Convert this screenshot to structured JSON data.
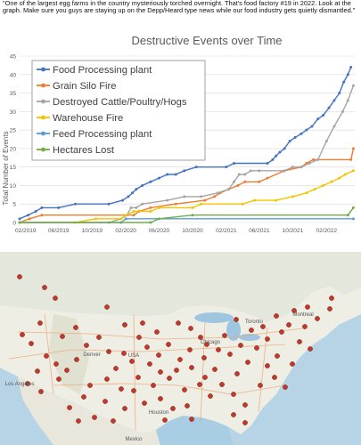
{
  "caption": "\"One of the largest egg farms in the country mysteriously torched overnight.  That's food factory #19 in 2022. Look at the graph. Make sure you guys are staying up on the Depp/Heard type news while our food industry gets quietly dismantled.\"",
  "chart_data": {
    "type": "line",
    "title": "Destructive Events over Time",
    "xlabel": "",
    "ylabel": "Total Number of Events",
    "ylim": [
      0,
      45
    ],
    "yticks": [
      0,
      5,
      10,
      15,
      20,
      25,
      30,
      35,
      40,
      45
    ],
    "xlim": [
      "2019-01-10",
      "2022-05-15"
    ],
    "x_tick_labels": [
      "02/2019",
      "06/2019",
      "10/2019",
      "02/2020",
      "06/2020",
      "10/2020",
      "02/2021",
      "06/2021",
      "10/2021",
      "02/2022"
    ],
    "x_tick_dates": [
      "2019-02-01",
      "2019-06-01",
      "2019-10-01",
      "2020-02-01",
      "2020-06-01",
      "2020-10-01",
      "2021-02-01",
      "2021-06-01",
      "2021-10-01",
      "2022-02-01"
    ],
    "grid": "horizontal",
    "legend_position": "top-left",
    "series": [
      {
        "name": "Food Processing plant",
        "color": "#4472c4",
        "points": [
          [
            "2019-01-10",
            1
          ],
          [
            "2019-02-10",
            2
          ],
          [
            "2019-03-10",
            3
          ],
          [
            "2019-04-01",
            4
          ],
          [
            "2019-06-01",
            4
          ],
          [
            "2019-08-01",
            5
          ],
          [
            "2019-12-01",
            5
          ],
          [
            "2020-01-20",
            6
          ],
          [
            "2020-02-10",
            7
          ],
          [
            "2020-02-25",
            8
          ],
          [
            "2020-03-10",
            9
          ],
          [
            "2020-04-01",
            10
          ],
          [
            "2020-05-01",
            11
          ],
          [
            "2020-06-01",
            12
          ],
          [
            "2020-07-01",
            13
          ],
          [
            "2020-08-01",
            13
          ],
          [
            "2020-09-01",
            14
          ],
          [
            "2020-10-15",
            15
          ],
          [
            "2021-02-01",
            15
          ],
          [
            "2021-03-01",
            16
          ],
          [
            "2021-07-01",
            16
          ],
          [
            "2021-07-20",
            17
          ],
          [
            "2021-08-01",
            18
          ],
          [
            "2021-08-15",
            19
          ],
          [
            "2021-09-01",
            20
          ],
          [
            "2021-09-20",
            22
          ],
          [
            "2021-10-10",
            23
          ],
          [
            "2021-11-01",
            24
          ],
          [
            "2021-11-20",
            25
          ],
          [
            "2021-12-10",
            26
          ],
          [
            "2022-01-01",
            28
          ],
          [
            "2022-01-20",
            29
          ],
          [
            "2022-02-10",
            31
          ],
          [
            "2022-03-01",
            33
          ],
          [
            "2022-03-20",
            35
          ],
          [
            "2022-04-05",
            38
          ],
          [
            "2022-04-20",
            40
          ],
          [
            "2022-05-01",
            42
          ]
        ]
      },
      {
        "name": "Grain Silo Fire",
        "color": "#ed7d31",
        "points": [
          [
            "2019-01-10",
            0
          ],
          [
            "2019-02-15",
            1
          ],
          [
            "2019-04-01",
            2
          ],
          [
            "2020-03-01",
            2
          ],
          [
            "2020-03-20",
            3
          ],
          [
            "2020-05-01",
            4
          ],
          [
            "2020-08-01",
            5
          ],
          [
            "2020-11-15",
            6
          ],
          [
            "2020-12-20",
            7
          ],
          [
            "2021-01-10",
            8
          ],
          [
            "2021-02-10",
            9
          ],
          [
            "2021-03-15",
            10
          ],
          [
            "2021-04-10",
            11
          ],
          [
            "2021-06-01",
            11
          ],
          [
            "2021-07-01",
            12
          ],
          [
            "2021-09-01",
            14
          ],
          [
            "2021-11-01",
            15
          ],
          [
            "2021-11-20",
            16
          ],
          [
            "2021-12-15",
            17
          ],
          [
            "2022-05-01",
            17
          ],
          [
            "2022-05-10",
            20
          ]
        ]
      },
      {
        "name": "Destroyed Cattle/Poultry/Hogs",
        "color": "#a5a5a5",
        "points": [
          [
            "2019-01-10",
            0
          ],
          [
            "2019-12-01",
            0
          ],
          [
            "2020-01-15",
            1
          ],
          [
            "2020-02-05",
            2
          ],
          [
            "2020-02-20",
            4
          ],
          [
            "2020-03-10",
            4
          ],
          [
            "2020-04-01",
            5
          ],
          [
            "2020-07-01",
            6
          ],
          [
            "2020-09-01",
            7
          ],
          [
            "2020-11-01",
            7
          ],
          [
            "2021-01-01",
            8
          ],
          [
            "2021-02-10",
            9
          ],
          [
            "2021-03-01",
            11
          ],
          [
            "2021-03-20",
            13
          ],
          [
            "2021-04-10",
            13
          ],
          [
            "2021-05-01",
            14
          ],
          [
            "2021-06-01",
            14
          ],
          [
            "2021-09-01",
            14
          ],
          [
            "2021-10-01",
            15
          ],
          [
            "2021-11-01",
            15
          ],
          [
            "2021-12-01",
            16
          ],
          [
            "2022-01-01",
            17
          ],
          [
            "2022-02-01",
            22
          ],
          [
            "2022-03-01",
            26
          ],
          [
            "2022-04-01",
            30
          ],
          [
            "2022-04-20",
            33
          ],
          [
            "2022-05-10",
            37
          ]
        ]
      },
      {
        "name": "Warehouse Fire",
        "color": "#f2c500",
        "points": [
          [
            "2019-01-10",
            0
          ],
          [
            "2019-08-01",
            0
          ],
          [
            "2019-10-15",
            1
          ],
          [
            "2020-01-15",
            1
          ],
          [
            "2020-02-01",
            2
          ],
          [
            "2020-03-01",
            3
          ],
          [
            "2020-05-01",
            3
          ],
          [
            "2020-06-01",
            4
          ],
          [
            "2020-10-01",
            4
          ],
          [
            "2020-11-01",
            5
          ],
          [
            "2021-04-01",
            5
          ],
          [
            "2021-05-15",
            6
          ],
          [
            "2021-08-01",
            6
          ],
          [
            "2021-10-01",
            7
          ],
          [
            "2021-11-20",
            8
          ],
          [
            "2021-12-20",
            9
          ],
          [
            "2022-01-20",
            10
          ],
          [
            "2022-02-20",
            11
          ],
          [
            "2022-03-20",
            12
          ],
          [
            "2022-04-10",
            13
          ],
          [
            "2022-05-10",
            14
          ]
        ]
      },
      {
        "name": "Feed Processing plant",
        "color": "#5b9bd5",
        "points": [
          [
            "2019-01-10",
            0
          ],
          [
            "2020-01-15",
            0
          ],
          [
            "2020-02-01",
            1
          ],
          [
            "2022-05-10",
            1
          ]
        ]
      },
      {
        "name": "Hectares Lost",
        "color": "#70ad47",
        "points": [
          [
            "2019-01-10",
            0
          ],
          [
            "2020-05-01",
            0
          ],
          [
            "2020-06-01",
            1
          ],
          [
            "2020-10-01",
            2
          ],
          [
            "2022-04-20",
            2
          ],
          [
            "2022-05-10",
            4
          ]
        ]
      }
    ]
  },
  "map": {
    "labels": [
      {
        "text": "USA"
      },
      {
        "text": "Mexico"
      },
      {
        "text": "Chicago"
      },
      {
        "text": "Toronto"
      },
      {
        "text": "Los Angeles"
      },
      {
        "text": "Houston"
      },
      {
        "text": "Denver"
      },
      {
        "text": "Montreal"
      }
    ]
  }
}
